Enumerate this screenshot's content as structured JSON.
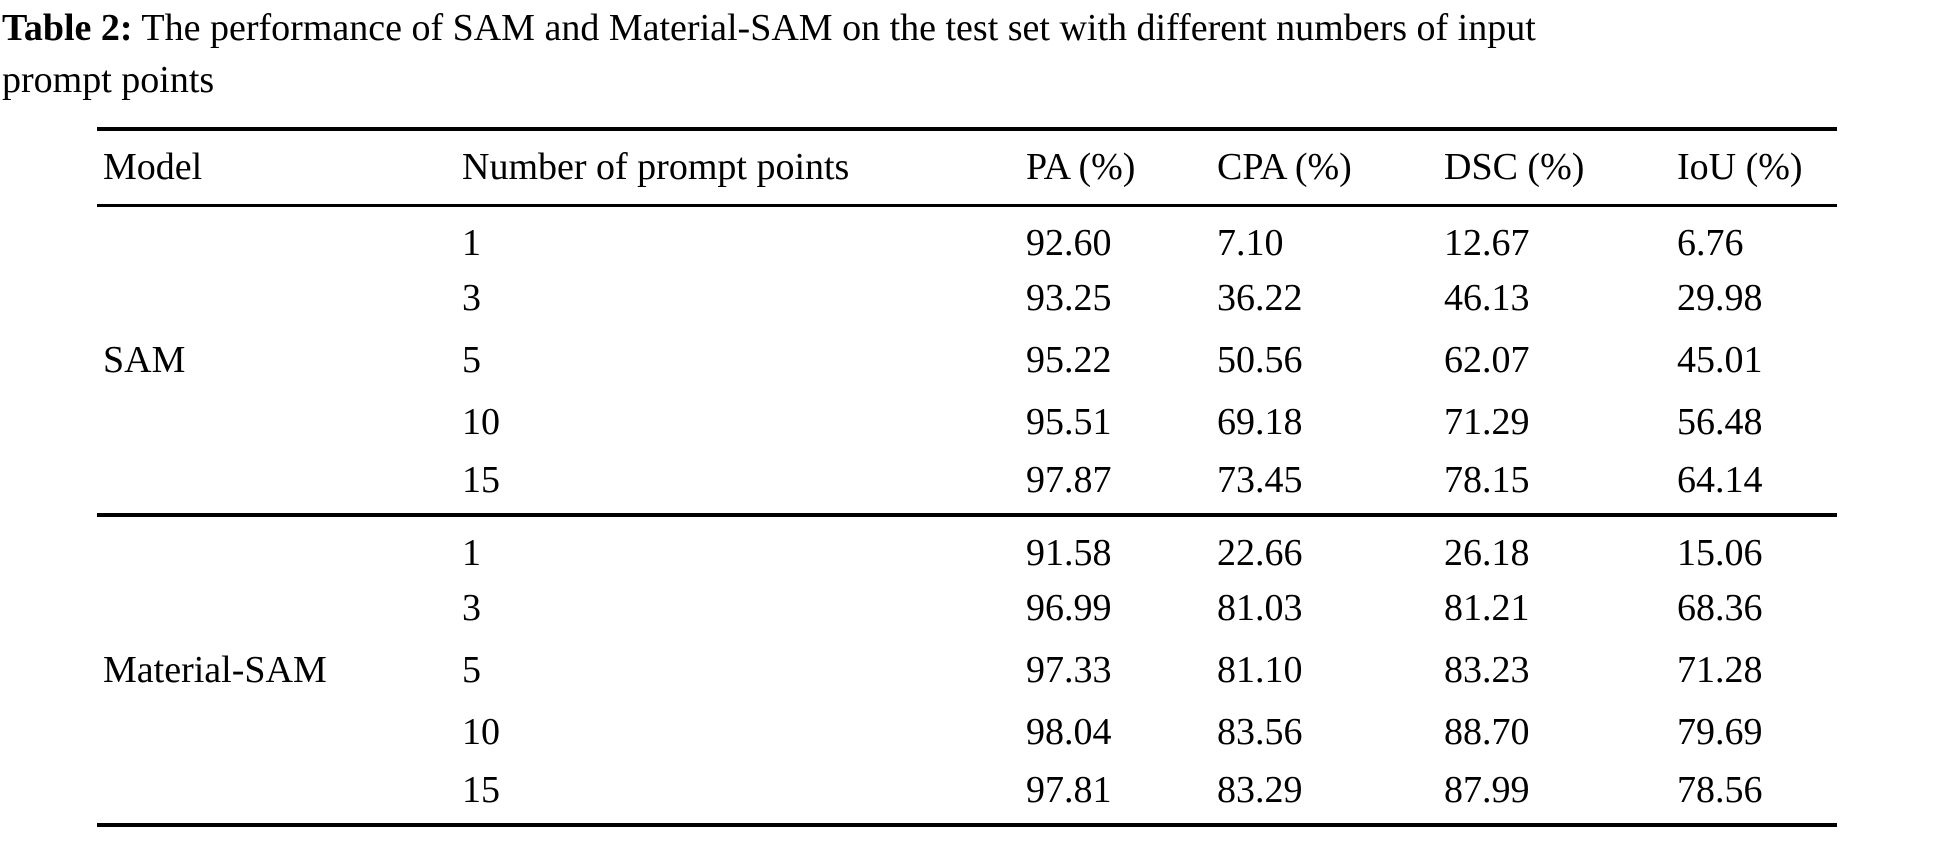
{
  "caption": {
    "label": "Table 2:",
    "text": " The performance of SAM and Material-SAM on the test set with different numbers of input prompt points"
  },
  "table": {
    "columns": [
      "Model",
      "Number of prompt points",
      "PA (%)",
      "CPA (%)",
      "DSC (%)",
      "IoU (%)"
    ],
    "groups": [
      {
        "model": "SAM",
        "rows": [
          {
            "points": "1",
            "pa": "92.60",
            "cpa": "7.10",
            "dsc": "12.67",
            "iou": "6.76"
          },
          {
            "points": "3",
            "pa": "93.25",
            "cpa": "36.22",
            "dsc": "46.13",
            "iou": "29.98"
          },
          {
            "points": "5",
            "pa": "95.22",
            "cpa": "50.56",
            "dsc": "62.07",
            "iou": "45.01"
          },
          {
            "points": "10",
            "pa": "95.51",
            "cpa": "69.18",
            "dsc": "71.29",
            "iou": "56.48"
          },
          {
            "points": "15",
            "pa": "97.87",
            "cpa": "73.45",
            "dsc": "78.15",
            "iou": "64.14"
          }
        ]
      },
      {
        "model": "Material-SAM",
        "rows": [
          {
            "points": "1",
            "pa": "91.58",
            "cpa": "22.66",
            "dsc": "26.18",
            "iou": "15.06"
          },
          {
            "points": "3",
            "pa": "96.99",
            "cpa": "81.03",
            "dsc": "81.21",
            "iou": "68.36"
          },
          {
            "points": "5",
            "pa": "97.33",
            "cpa": "81.10",
            "dsc": "83.23",
            "iou": "71.28"
          },
          {
            "points": "10",
            "pa": "98.04",
            "cpa": "83.56",
            "dsc": "88.70",
            "iou": "79.69"
          },
          {
            "points": "15",
            "pa": "97.81",
            "cpa": "83.29",
            "dsc": "87.99",
            "iou": "78.56"
          }
        ]
      }
    ]
  }
}
